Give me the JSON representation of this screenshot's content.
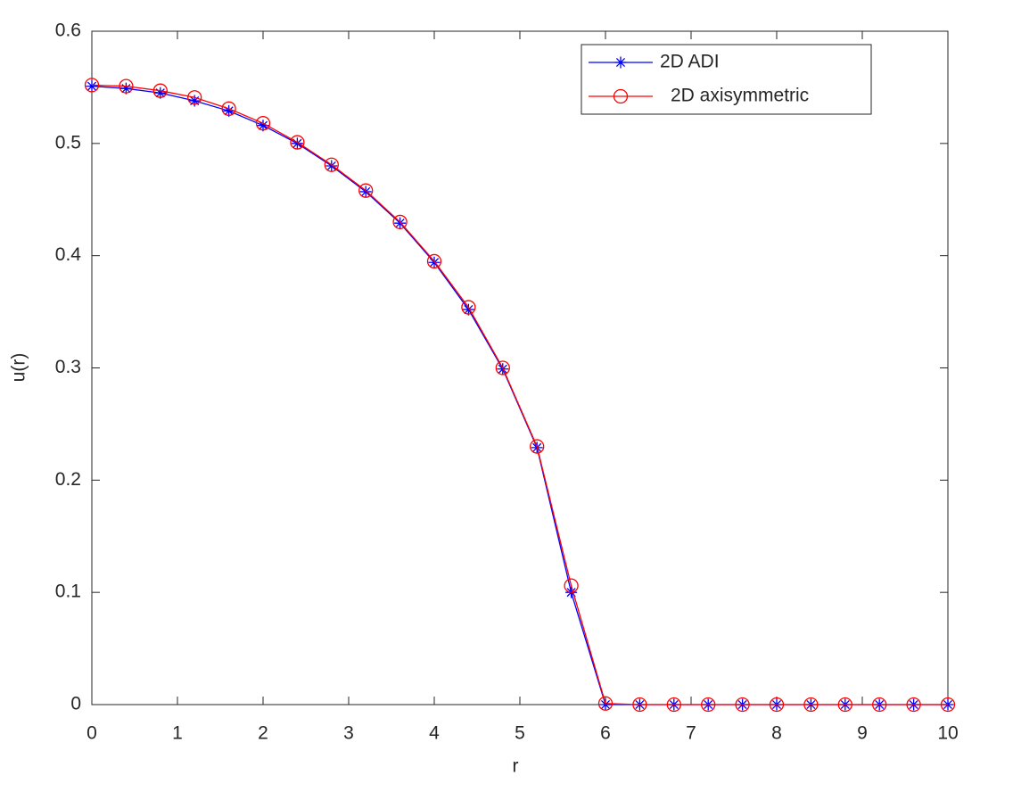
{
  "chart_data": {
    "type": "line",
    "x_label": "r",
    "y_label": "u(r)",
    "x": [
      0,
      0.4,
      0.8,
      1.2,
      1.6,
      2.0,
      2.4,
      2.8,
      3.2,
      3.6,
      4.0,
      4.4,
      4.8,
      5.2,
      5.6,
      6.0,
      6.4,
      6.8,
      7.2,
      7.6,
      8.0,
      8.4,
      8.8,
      9.2,
      9.6,
      10.0
    ],
    "series": [
      {
        "name": "2D ADI",
        "color": "#0000ff",
        "marker": "asterisk",
        "values": [
          0.551,
          0.549,
          0.545,
          0.538,
          0.529,
          0.516,
          0.5,
          0.48,
          0.457,
          0.429,
          0.394,
          0.352,
          0.299,
          0.229,
          0.1,
          0,
          0,
          0,
          0,
          0,
          0,
          0,
          0,
          0,
          0,
          0
        ]
      },
      {
        "name": "2D axisymmetric",
        "color": "#ff0000",
        "marker": "circle",
        "values": [
          0.552,
          0.551,
          0.547,
          0.541,
          0.531,
          0.518,
          0.501,
          0.481,
          0.458,
          0.43,
          0.395,
          0.354,
          0.3,
          0.23,
          0.106,
          0.001,
          0,
          0,
          0,
          0,
          0,
          0,
          0,
          0,
          0,
          0
        ]
      }
    ],
    "xlim": [
      0,
      10
    ],
    "xticks": [
      0,
      1,
      2,
      3,
      4,
      5,
      6,
      7,
      8,
      9,
      10
    ],
    "ylim": [
      0,
      0.6
    ],
    "yticks": [
      0,
      0.1,
      0.2,
      0.3,
      0.4,
      0.5,
      0.6
    ],
    "grid": false,
    "legend": "upper right"
  }
}
